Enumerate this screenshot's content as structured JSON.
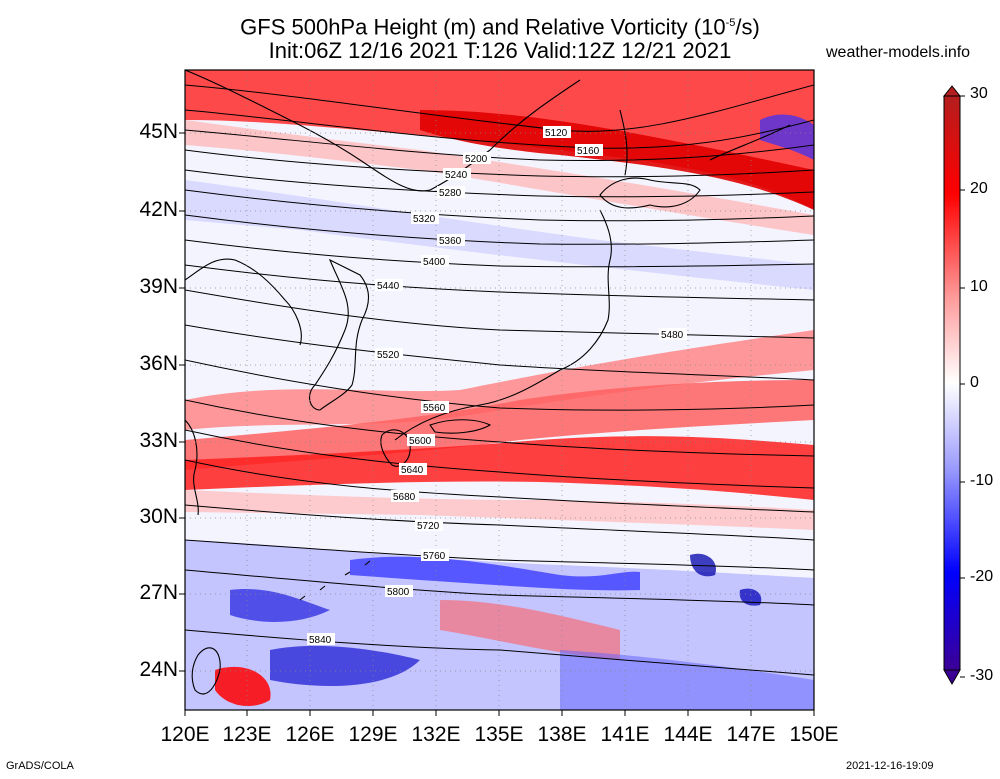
{
  "title_line1": "GFS 500hPa Height (m) and Relative Vorticity (10",
  "title_exp": "-5",
  "title_line1_end": "/s)",
  "title_line2": "Init:06Z 12/16 2021 T:126 Valid:12Z 12/21 2021",
  "site": "weather-models.info",
  "footer_left": "GrADS/COLA",
  "footer_right": "2021-12-16-19:09",
  "lat_labels": [
    "45N",
    "42N",
    "39N",
    "36N",
    "33N",
    "30N",
    "27N",
    "24N"
  ],
  "lon_labels": [
    "120E",
    "123E",
    "126E",
    "129E",
    "132E",
    "135E",
    "138E",
    "141E",
    "144E",
    "147E",
    "150E"
  ],
  "colorbar": {
    "labels": [
      "30",
      "20",
      "10",
      "0",
      "-10",
      "-20",
      "-30"
    ],
    "colors": [
      "#b41e1e",
      "#ff0000",
      "#ff9090",
      "#ffffff",
      "#9090ff",
      "#0000ff",
      "#3c0096"
    ]
  },
  "contours": [
    {
      "value": "5120"
    },
    {
      "value": "5160"
    },
    {
      "value": "5200"
    },
    {
      "value": "5240"
    },
    {
      "value": "5280"
    },
    {
      "value": "5320"
    },
    {
      "value": "5360"
    },
    {
      "value": "5400"
    },
    {
      "value": "5440"
    },
    {
      "value": "5480"
    },
    {
      "value": "5520"
    },
    {
      "value": "5560"
    },
    {
      "value": "5600"
    },
    {
      "value": "5640"
    },
    {
      "value": "5680"
    },
    {
      "value": "5720"
    },
    {
      "value": "5760"
    },
    {
      "value": "5800"
    },
    {
      "value": "5840"
    }
  ]
}
